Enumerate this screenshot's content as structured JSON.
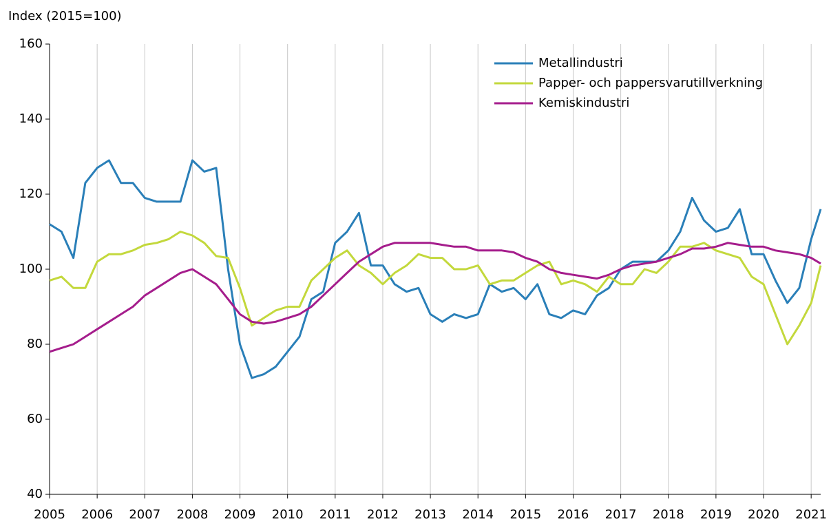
{
  "chart_data": {
    "type": "line",
    "y_label": "Index (2015=100)",
    "x": [
      2005,
      2005.25,
      2005.5,
      2005.75,
      2006,
      2006.25,
      2006.5,
      2006.75,
      2007,
      2007.25,
      2007.5,
      2007.75,
      2008,
      2008.25,
      2008.5,
      2008.75,
      2009,
      2009.25,
      2009.5,
      2009.75,
      2010,
      2010.25,
      2010.5,
      2010.75,
      2011,
      2011.25,
      2011.5,
      2011.75,
      2012,
      2012.25,
      2012.5,
      2012.75,
      2013,
      2013.25,
      2013.5,
      2013.75,
      2014,
      2014.25,
      2014.5,
      2014.75,
      2015,
      2015.25,
      2015.5,
      2015.75,
      2016,
      2016.25,
      2016.5,
      2016.75,
      2017,
      2017.25,
      2017.5,
      2017.75,
      2018,
      2018.25,
      2018.5,
      2018.75,
      2019,
      2019.25,
      2019.5,
      2019.75,
      2020,
      2020.25,
      2020.5,
      2020.75,
      2021,
      2021.2
    ],
    "series": [
      {
        "name": "Metallindustri",
        "color": "#2a7fb8",
        "values": [
          112,
          110,
          103,
          123,
          127,
          129,
          123,
          123,
          119,
          118,
          118,
          118,
          129,
          126,
          127,
          100,
          80,
          71,
          72,
          74,
          78,
          82,
          92,
          94,
          107,
          110,
          115,
          101,
          101,
          96,
          94,
          95,
          88,
          86,
          88,
          87,
          88,
          96,
          94,
          95,
          92,
          96,
          88,
          87,
          89,
          88,
          93,
          95,
          100,
          102,
          102,
          102,
          105,
          110,
          119,
          113,
          110,
          111,
          116,
          104,
          104,
          97,
          91,
          95,
          108,
          116
        ]
      },
      {
        "name": "Papper- och pappersvarutillverkning",
        "color": "#c3d83c",
        "values": [
          97,
          98,
          95,
          95,
          102,
          104,
          104,
          105,
          106.5,
          107,
          108,
          110,
          109,
          107,
          103.5,
          103,
          95,
          85,
          87,
          89,
          90,
          90,
          97,
          100,
          103,
          105,
          101,
          99,
          96,
          99,
          101,
          104,
          103,
          103,
          100,
          100,
          101,
          96,
          97,
          97,
          99,
          101,
          102,
          96,
          97,
          96,
          94,
          98,
          96,
          96,
          100,
          99,
          102,
          106,
          106,
          107,
          105,
          104,
          103,
          98,
          96,
          88,
          80,
          85,
          91,
          101
        ]
      },
      {
        "name": "Kemiskindustri",
        "color": "#a51d8c",
        "values": [
          78,
          79,
          80,
          82,
          84,
          86,
          88,
          90,
          93,
          95,
          97,
          99,
          100,
          98,
          96,
          92,
          88,
          86,
          85.5,
          86,
          87,
          88,
          90,
          93,
          96,
          99,
          102,
          104,
          106,
          107,
          107,
          107,
          107,
          106.5,
          106,
          106,
          105,
          105,
          105,
          104.5,
          103,
          102,
          100,
          99,
          98.5,
          98,
          97.5,
          98.5,
          100,
          101,
          101.5,
          102,
          103,
          104,
          105.5,
          105.5,
          106,
          107,
          106.5,
          106,
          106,
          105,
          104.5,
          104,
          103,
          101.5
        ]
      }
    ],
    "xlim": [
      2005,
      2021.2
    ],
    "ylim": [
      40,
      160
    ],
    "xticks": [
      2005,
      2006,
      2007,
      2008,
      2009,
      2010,
      2011,
      2012,
      2013,
      2014,
      2015,
      2016,
      2017,
      2018,
      2019,
      2020,
      2021
    ],
    "yticks": [
      40,
      60,
      80,
      100,
      120,
      140,
      160
    ],
    "grid": "x",
    "legend": "upper right"
  }
}
